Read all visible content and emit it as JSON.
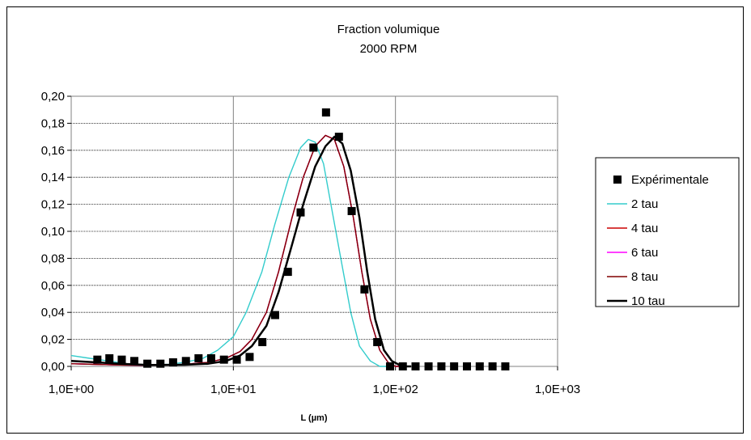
{
  "chart_data": {
    "type": "scatter",
    "title": "Fraction volumique",
    "subtitle": "2000 RPM",
    "xlabel": "L (µm)",
    "ylabel": "",
    "x_scale": "log",
    "xlim": [
      1,
      1000
    ],
    "ylim": [
      0,
      0.2
    ],
    "x_ticks": [
      "1,0E+00",
      "1,0E+01",
      "1,0E+02",
      "1,0E+03"
    ],
    "y_ticks": [
      "0,00",
      "0,02",
      "0,04",
      "0,06",
      "0,08",
      "0,10",
      "0,12",
      "0,14",
      "0,16",
      "0,18",
      "0,20"
    ],
    "grid": true,
    "legend_position": "right",
    "series": [
      {
        "name": "Expérimentale",
        "style": "marker",
        "color": "#000000",
        "points": [
          [
            1.45,
            0.005
          ],
          [
            1.72,
            0.006
          ],
          [
            2.05,
            0.005
          ],
          [
            2.45,
            0.004
          ],
          [
            2.95,
            0.002
          ],
          [
            3.55,
            0.002
          ],
          [
            4.25,
            0.003
          ],
          [
            5.1,
            0.004
          ],
          [
            6.1,
            0.006
          ],
          [
            7.3,
            0.006
          ],
          [
            8.75,
            0.005
          ],
          [
            10.5,
            0.005
          ],
          [
            12.6,
            0.007
          ],
          [
            15.1,
            0.018
          ],
          [
            18.1,
            0.038
          ],
          [
            21.7,
            0.07
          ],
          [
            26.0,
            0.114
          ],
          [
            31.2,
            0.162
          ],
          [
            37.3,
            0.188
          ],
          [
            44.8,
            0.17
          ],
          [
            53.7,
            0.115
          ],
          [
            64.4,
            0.057
          ],
          [
            77.2,
            0.018
          ],
          [
            92.6,
            0.0
          ],
          [
            111,
            0.0
          ],
          [
            133,
            0.0
          ],
          [
            160,
            0.0
          ],
          [
            192,
            0.0
          ],
          [
            230,
            0.0
          ],
          [
            276,
            0.0
          ],
          [
            331,
            0.0
          ],
          [
            397,
            0.0
          ],
          [
            476,
            0.0
          ]
        ]
      },
      {
        "name": "2 tau",
        "style": "line",
        "color": "#33cccc",
        "points": [
          [
            1.0,
            0.008
          ],
          [
            1.3,
            0.006
          ],
          [
            1.7,
            0.004
          ],
          [
            2.2,
            0.002
          ],
          [
            3.0,
            0.001
          ],
          [
            4.0,
            0.0015
          ],
          [
            5.0,
            0.003
          ],
          [
            6.5,
            0.006
          ],
          [
            8.0,
            0.012
          ],
          [
            10.0,
            0.022
          ],
          [
            12.0,
            0.04
          ],
          [
            15.0,
            0.07
          ],
          [
            18.0,
            0.105
          ],
          [
            22.0,
            0.14
          ],
          [
            26.0,
            0.162
          ],
          [
            29.0,
            0.168
          ],
          [
            32.0,
            0.166
          ],
          [
            36.0,
            0.15
          ],
          [
            40.0,
            0.12
          ],
          [
            46.0,
            0.08
          ],
          [
            53.0,
            0.04
          ],
          [
            60.0,
            0.015
          ],
          [
            70.0,
            0.004
          ],
          [
            80.0,
            0.0
          ],
          [
            95.0,
            0.0
          ]
        ]
      },
      {
        "name": "4 tau",
        "style": "line",
        "color": "#cc0000",
        "points": [
          [
            1.0,
            0.002
          ],
          [
            2.0,
            0.001
          ],
          [
            3.0,
            0.0008
          ],
          [
            5.0,
            0.0015
          ],
          [
            7.0,
            0.003
          ],
          [
            9.0,
            0.006
          ],
          [
            11.0,
            0.011
          ],
          [
            13.0,
            0.02
          ],
          [
            16.0,
            0.04
          ],
          [
            19.0,
            0.07
          ],
          [
            23.0,
            0.11
          ],
          [
            27.0,
            0.14
          ],
          [
            32.0,
            0.163
          ],
          [
            37.0,
            0.171
          ],
          [
            42.0,
            0.168
          ],
          [
            48.0,
            0.148
          ],
          [
            55.0,
            0.11
          ],
          [
            62.0,
            0.07
          ],
          [
            70.0,
            0.035
          ],
          [
            80.0,
            0.012
          ],
          [
            90.0,
            0.003
          ],
          [
            100.0,
            0.0
          ],
          [
            110.0,
            0.0
          ]
        ]
      },
      {
        "name": "6 tau",
        "style": "line",
        "color": "#ff00ff",
        "points": [
          [
            1.0,
            0.002
          ],
          [
            2.0,
            0.001
          ],
          [
            3.0,
            0.0008
          ],
          [
            5.0,
            0.0015
          ],
          [
            7.0,
            0.003
          ],
          [
            9.0,
            0.006
          ],
          [
            11.0,
            0.011
          ],
          [
            13.0,
            0.02
          ],
          [
            16.0,
            0.04
          ],
          [
            19.0,
            0.07
          ],
          [
            23.0,
            0.11
          ],
          [
            27.0,
            0.14
          ],
          [
            32.0,
            0.163
          ],
          [
            37.0,
            0.171
          ],
          [
            42.0,
            0.168
          ],
          [
            48.0,
            0.148
          ],
          [
            55.0,
            0.11
          ],
          [
            62.0,
            0.07
          ],
          [
            70.0,
            0.035
          ],
          [
            80.0,
            0.012
          ],
          [
            90.0,
            0.003
          ],
          [
            100.0,
            0.0
          ],
          [
            110.0,
            0.0
          ]
        ]
      },
      {
        "name": "8 tau",
        "style": "line",
        "color": "#800000",
        "points": [
          [
            1.0,
            0.002
          ],
          [
            2.0,
            0.001
          ],
          [
            3.0,
            0.0008
          ],
          [
            5.0,
            0.0015
          ],
          [
            7.0,
            0.003
          ],
          [
            9.0,
            0.006
          ],
          [
            11.0,
            0.011
          ],
          [
            13.0,
            0.02
          ],
          [
            16.0,
            0.04
          ],
          [
            19.0,
            0.07
          ],
          [
            23.0,
            0.11
          ],
          [
            27.0,
            0.14
          ],
          [
            32.0,
            0.163
          ],
          [
            37.0,
            0.171
          ],
          [
            42.0,
            0.168
          ],
          [
            48.0,
            0.148
          ],
          [
            55.0,
            0.11
          ],
          [
            62.0,
            0.07
          ],
          [
            70.0,
            0.035
          ],
          [
            80.0,
            0.012
          ],
          [
            90.0,
            0.003
          ],
          [
            100.0,
            0.0
          ],
          [
            110.0,
            0.0
          ]
        ]
      },
      {
        "name": "10 tau",
        "style": "line",
        "color": "#000000",
        "points": [
          [
            1.0,
            0.004
          ],
          [
            2.0,
            0.002
          ],
          [
            3.0,
            0.001
          ],
          [
            5.0,
            0.0012
          ],
          [
            7.0,
            0.002
          ],
          [
            9.0,
            0.004
          ],
          [
            11.0,
            0.008
          ],
          [
            13.0,
            0.015
          ],
          [
            16.0,
            0.03
          ],
          [
            19.0,
            0.055
          ],
          [
            23.0,
            0.09
          ],
          [
            27.0,
            0.12
          ],
          [
            32.0,
            0.148
          ],
          [
            37.0,
            0.163
          ],
          [
            42.0,
            0.17
          ],
          [
            47.0,
            0.165
          ],
          [
            53.0,
            0.145
          ],
          [
            60.0,
            0.11
          ],
          [
            67.0,
            0.07
          ],
          [
            75.0,
            0.035
          ],
          [
            85.0,
            0.012
          ],
          [
            95.0,
            0.004
          ],
          [
            110.0,
            0.0
          ],
          [
            125.0,
            0.0
          ]
        ]
      }
    ]
  }
}
